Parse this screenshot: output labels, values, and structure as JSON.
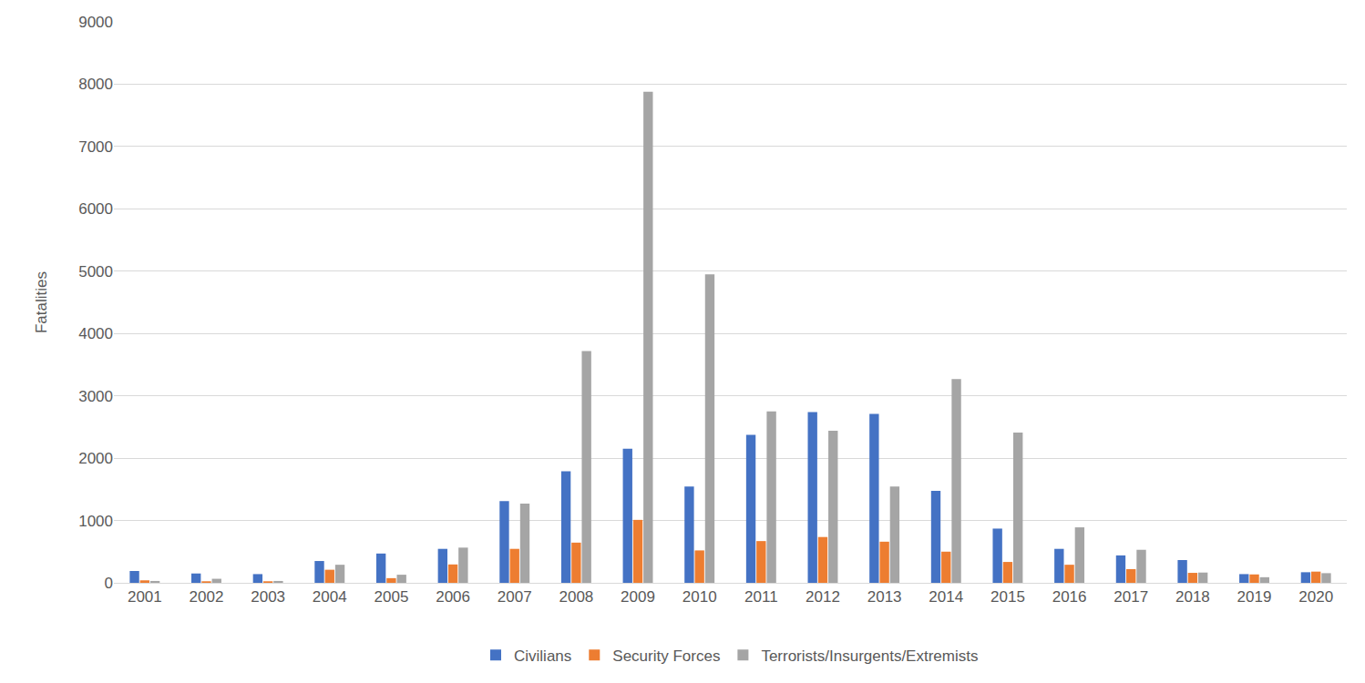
{
  "chart_data": {
    "type": "bar",
    "y_label": "Fatalities",
    "categories": [
      "2001",
      "2002",
      "2003",
      "2004",
      "2005",
      "2006",
      "2007",
      "2008",
      "2009",
      "2010",
      "2011",
      "2012",
      "2013",
      "2014",
      "2015",
      "2016",
      "2017",
      "2018",
      "2019",
      "2020"
    ],
    "series": [
      {
        "name": "Civilians",
        "color": "#4472c4",
        "values": [
          190,
          150,
          140,
          350,
          470,
          545,
          1310,
          1790,
          2150,
          1545,
          2375,
          2740,
          2710,
          1475,
          870,
          545,
          440,
          365,
          140,
          170
        ]
      },
      {
        "name": "Security Forces",
        "color": "#ed7d31",
        "values": [
          40,
          25,
          25,
          210,
          75,
          295,
          545,
          645,
          1010,
          520,
          670,
          735,
          660,
          500,
          335,
          290,
          220,
          160,
          135,
          180
        ]
      },
      {
        "name": "Terrorists/Insurgents/Extremists",
        "color": "#a5a5a5",
        "values": [
          30,
          65,
          30,
          290,
          130,
          565,
          1270,
          3720,
          7880,
          4950,
          2750,
          2440,
          1545,
          3270,
          2410,
          890,
          530,
          165,
          90,
          155
        ]
      }
    ],
    "ylim": [
      0,
      9000
    ],
    "yticks": [
      0,
      1000,
      2000,
      3000,
      4000,
      5000,
      6000,
      7000,
      8000,
      9000
    ],
    "grid": true,
    "legend": "bottom"
  }
}
